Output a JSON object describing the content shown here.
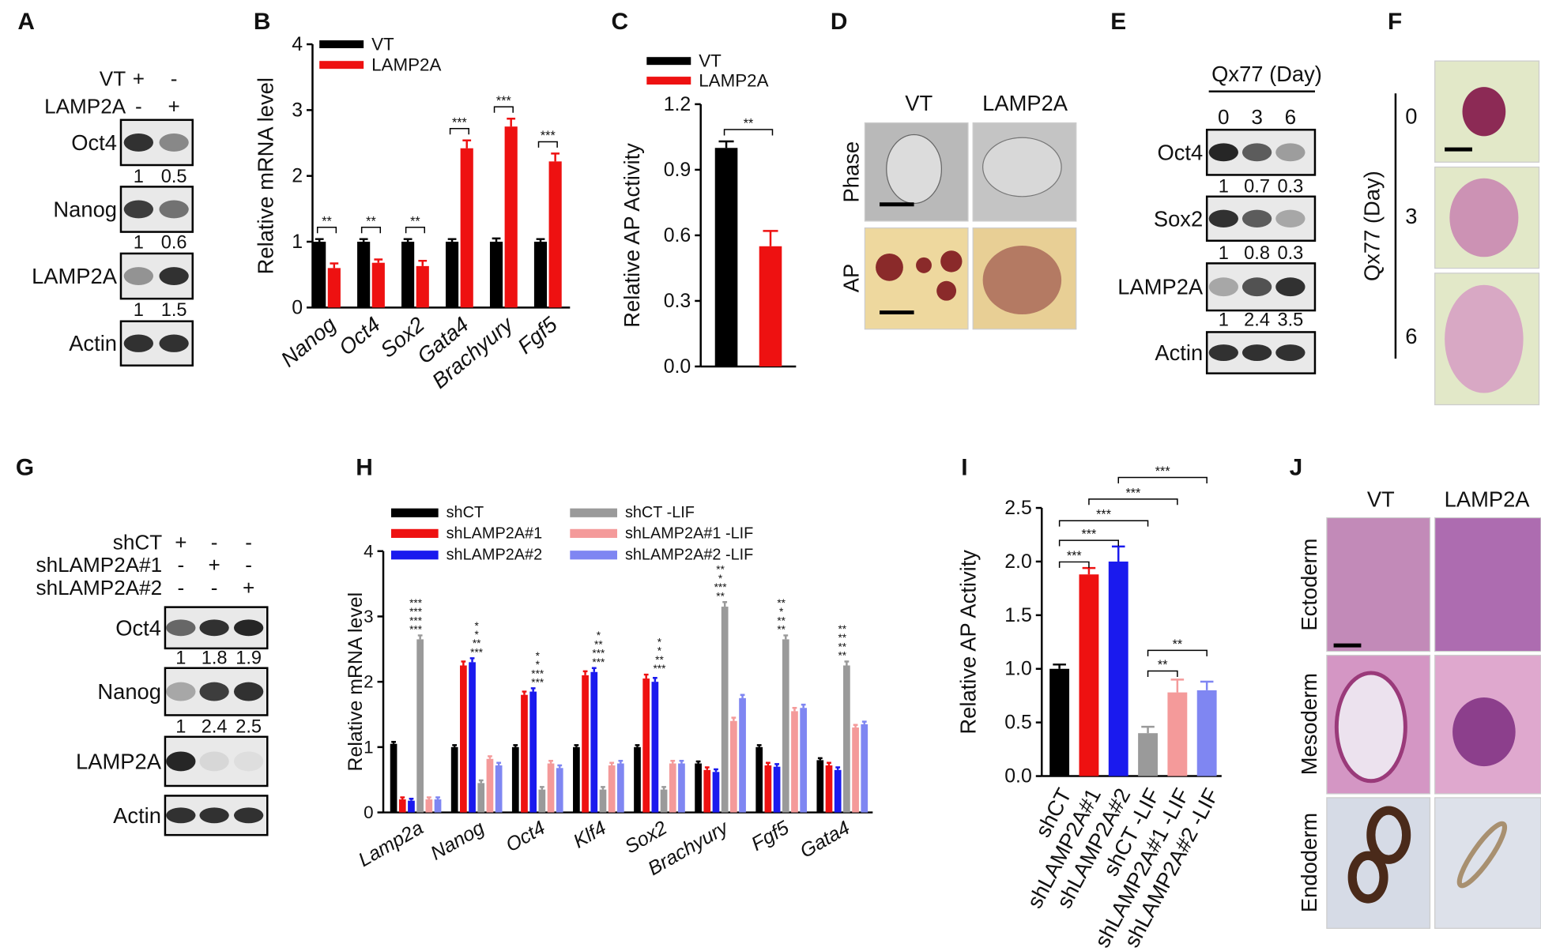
{
  "panel_labels": [
    "A",
    "B",
    "C",
    "D",
    "E",
    "F",
    "G",
    "H",
    "I",
    "J"
  ],
  "chart_data": [
    {
      "type": "bar",
      "y_label": "Relative mRNA level",
      "categories": [
        "Nanog",
        "Oct4",
        "Sox2",
        "Gata4",
        "Brachyury",
        "Fgf5"
      ],
      "series": [
        {
          "name": "VT",
          "color": "#000000",
          "values": [
            1.0,
            1.0,
            1.0,
            1.0,
            1.0,
            1.0
          ],
          "errors": [
            0.04,
            0.04,
            0.04,
            0.04,
            0.05,
            0.04
          ]
        },
        {
          "name": "LAMP2A",
          "color": "#ee1111",
          "values": [
            0.6,
            0.68,
            0.63,
            2.42,
            2.75,
            2.22
          ],
          "errors": [
            0.07,
            0.05,
            0.08,
            0.12,
            0.12,
            0.12
          ]
        }
      ],
      "ylim": [
        0,
        4
      ],
      "yticks": [
        0,
        1,
        2,
        3,
        4
      ],
      "significance": [
        "**",
        "**",
        "**",
        "***",
        "***",
        "***"
      ]
    },
    {
      "type": "bar",
      "y_label": "Relative AP Activity",
      "series": [
        {
          "name": "VT",
          "color": "#000000",
          "values": [
            1.0
          ],
          "errors": [
            0.03
          ]
        },
        {
          "name": "LAMP2A",
          "color": "#ee1111",
          "values": [
            0.55
          ],
          "errors": [
            0.07
          ]
        }
      ],
      "ylim": [
        0,
        1.2
      ],
      "yticks": [
        {
          "value": 0,
          "label": "0.0"
        },
        0.3,
        0.6,
        0.9,
        1.2
      ],
      "significance": [
        "**"
      ]
    },
    {
      "type": "bar",
      "y_label": "Relative mRNA level",
      "categories": [
        "Lamp2a",
        "Nanog",
        "Oct4",
        "Klf4",
        "Sox2",
        "Brachyury",
        "Fgf5",
        "Gata4"
      ],
      "series": [
        {
          "name": "shCT",
          "color": "#000000",
          "values": [
            1.05,
            1.0,
            1.0,
            1.0,
            1.0,
            0.75,
            1.0,
            0.8
          ],
          "errors": [
            0.03,
            0.03,
            0.03,
            0.03,
            0.03,
            0.03,
            0.03,
            0.03
          ]
        },
        {
          "name": "shLAMP2A#1",
          "color": "#ee1111",
          "values": [
            0.2,
            2.25,
            1.8,
            2.1,
            2.05,
            0.65,
            0.72,
            0.72
          ],
          "errors": [
            0.03,
            0.06,
            0.05,
            0.06,
            0.06,
            0.04,
            0.04,
            0.04
          ]
        },
        {
          "name": "shLAMP2A#2",
          "color": "#1a1aee",
          "values": [
            0.18,
            2.3,
            1.85,
            2.15,
            2.0,
            0.62,
            0.7,
            0.65
          ],
          "errors": [
            0.03,
            0.06,
            0.05,
            0.06,
            0.06,
            0.04,
            0.04,
            0.04
          ]
        },
        {
          "name": "shCT -LIF",
          "color": "#9a9a9a",
          "values": [
            2.65,
            0.45,
            0.35,
            0.35,
            0.35,
            3.15,
            2.65,
            2.25
          ],
          "errors": [
            0.06,
            0.04,
            0.04,
            0.04,
            0.04,
            0.07,
            0.06,
            0.06
          ]
        },
        {
          "name": "shLAMP2A#1 -LIF",
          "color": "#f49a9a",
          "values": [
            0.2,
            0.82,
            0.75,
            0.72,
            0.75,
            1.4,
            1.55,
            1.3
          ],
          "errors": [
            0.03,
            0.04,
            0.04,
            0.04,
            0.04,
            0.05,
            0.05,
            0.04
          ]
        },
        {
          "name": "shLAMP2A#2 -LIF",
          "color": "#7f86f2",
          "values": [
            0.2,
            0.72,
            0.68,
            0.75,
            0.75,
            1.75,
            1.6,
            1.35
          ],
          "errors": [
            0.03,
            0.04,
            0.04,
            0.04,
            0.04,
            0.05,
            0.05,
            0.04
          ]
        }
      ],
      "ylim": [
        0,
        4
      ],
      "yticks": [
        0,
        1,
        2,
        3,
        4
      ],
      "significance": [
        [
          "***",
          "***",
          "***",
          "***"
        ],
        [
          "***",
          "**",
          "*",
          "*"
        ],
        [
          "***",
          "***",
          "*",
          "*"
        ],
        [
          "***",
          "***",
          "**",
          "*"
        ],
        [
          "***",
          "**",
          "*",
          "*"
        ],
        [
          "**",
          "***",
          "*",
          "**"
        ],
        [
          "**",
          "**",
          "*",
          "**"
        ],
        [
          "**",
          "**",
          "**",
          "**"
        ]
      ]
    },
    {
      "type": "bar",
      "y_label": "Relative AP Activity",
      "categories": [
        "shCT",
        "shLAMP2A#1",
        "shLAMP2A#2",
        "shCT -LIF",
        "shLAMP2A#1 -LIF",
        "shLAMP2A#2 -LIF"
      ],
      "values": [
        1.0,
        1.88,
        2.0,
        0.4,
        0.78,
        0.8
      ],
      "errors": [
        0.04,
        0.06,
        0.14,
        0.06,
        0.12,
        0.08
      ],
      "colors": [
        "#000000",
        "#ee1111",
        "#1a1aee",
        "#9a9a9a",
        "#f49a9a",
        "#7f86f2"
      ],
      "ylim": [
        0,
        2.5
      ],
      "yticks": [
        {
          "value": 0,
          "label": "0.0"
        },
        0.5,
        {
          "value": 1,
          "label": "1.0"
        },
        1.5,
        {
          "value": 2,
          "label": "2.0"
        },
        2.5
      ],
      "significance": [
        "***",
        "***",
        "***",
        "***",
        "***",
        "**",
        "**"
      ]
    }
  ],
  "blot_a": {
    "conditions": [
      {
        "name": "VT",
        "signs": [
          "+",
          "-"
        ]
      },
      {
        "name": "LAMP2A",
        "signs": [
          "-",
          "+"
        ]
      }
    ],
    "rows": [
      {
        "name": "Oct4",
        "quant": [
          "1",
          "0.5"
        ]
      },
      {
        "name": "Nanog",
        "quant": [
          "1",
          "0.6"
        ]
      },
      {
        "name": "LAMP2A",
        "quant": [
          "1",
          "1.5"
        ]
      },
      {
        "name": "Actin"
      }
    ]
  },
  "images_d": {
    "columns": [
      "VT",
      "LAMP2A"
    ],
    "rows": [
      "Phase",
      "AP"
    ]
  },
  "blot_e": {
    "title": "Qx77 (Day)",
    "lanes": [
      "0",
      "3",
      "6"
    ],
    "rows": [
      {
        "name": "Oct4",
        "quant": [
          "1",
          "0.7",
          "0.3"
        ]
      },
      {
        "name": "Sox2",
        "quant": [
          "1",
          "0.8",
          "0.3"
        ]
      },
      {
        "name": "LAMP2A",
        "quant": [
          "1",
          "2.4",
          "3.5"
        ]
      },
      {
        "name": "Actin"
      }
    ]
  },
  "images_f": {
    "title": "Qx77 (Day)",
    "rows": [
      "0",
      "3",
      "6"
    ]
  },
  "blot_g": {
    "conditions": [
      {
        "name": "shCT",
        "signs": [
          "+",
          "-",
          "-"
        ]
      },
      {
        "name": "shLAMP2A#1",
        "signs": [
          "-",
          "+",
          "-"
        ]
      },
      {
        "name": "shLAMP2A#2",
        "signs": [
          "-",
          "-",
          "+"
        ]
      }
    ],
    "rows": [
      {
        "name": "Oct4",
        "quant": [
          "1",
          "1.8",
          "1.9"
        ]
      },
      {
        "name": "Nanog",
        "quant": [
          "1",
          "2.4",
          "2.5"
        ]
      },
      {
        "name": "LAMP2A"
      },
      {
        "name": "Actin"
      }
    ]
  },
  "images_j": {
    "columns": [
      "VT",
      "LAMP2A"
    ],
    "rows": [
      "Ectoderm",
      "Mesoderm",
      "Endoderm"
    ]
  }
}
